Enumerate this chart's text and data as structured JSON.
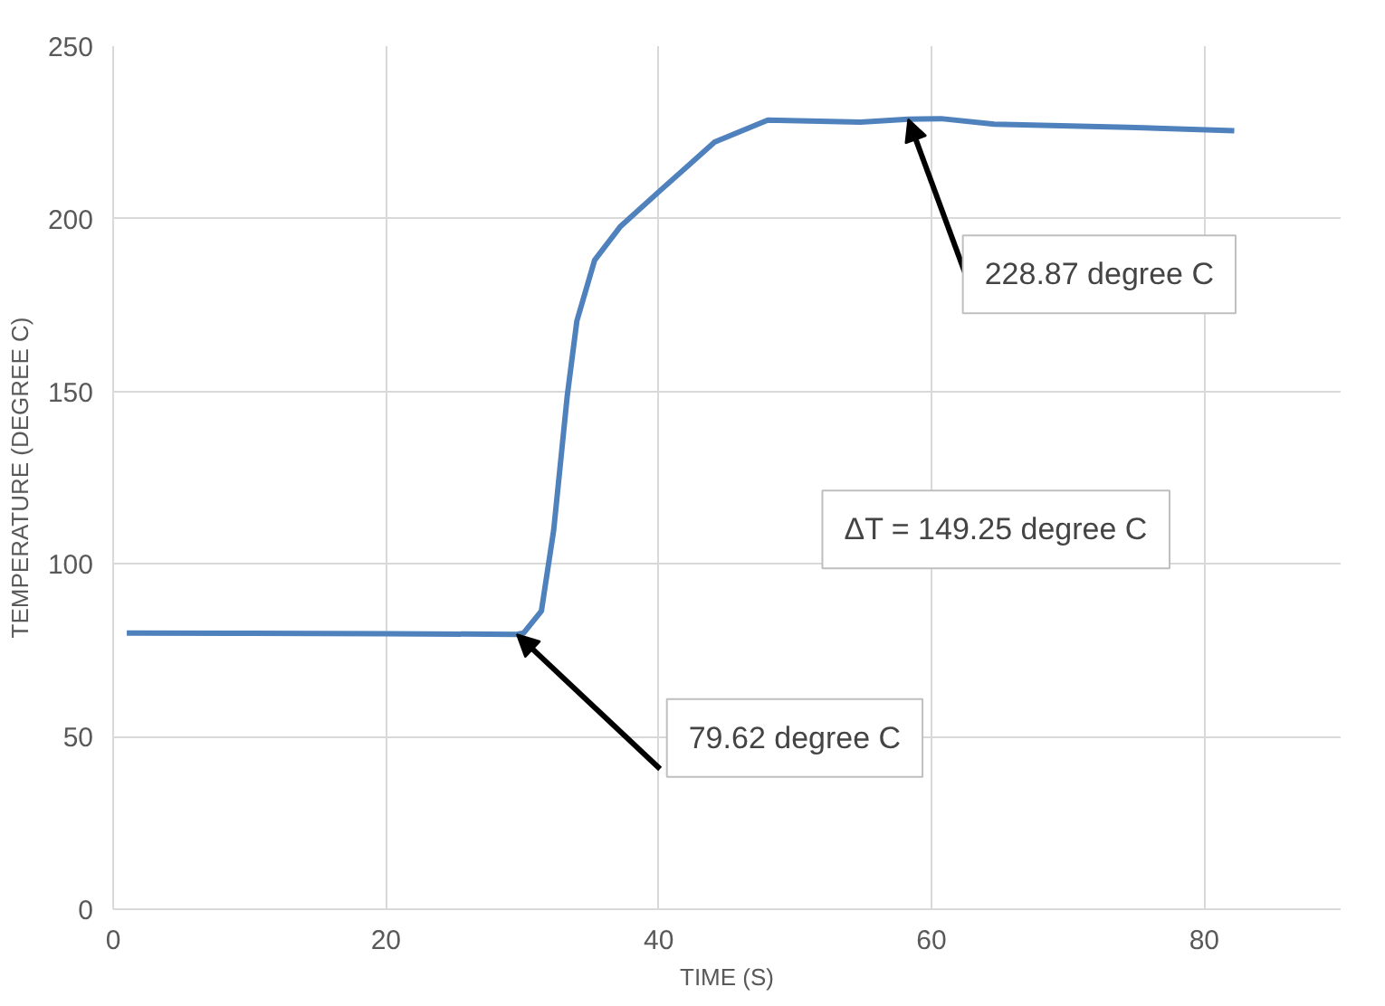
{
  "chart_data": {
    "type": "line",
    "xlabel": "TIME (S)",
    "ylabel": "TEMPERATURE (DEGREE C)",
    "x": [
      1,
      10,
      20,
      29.6,
      30.1,
      31.4,
      32.3,
      33.3,
      34.0,
      35.3,
      37.2,
      40.2,
      44.1,
      48.0,
      54.8,
      58.3,
      60.7,
      64.6,
      74.4,
      82.2
    ],
    "series": [
      {
        "color": "#4f81bd",
        "values": [
          80,
          79.9,
          79.8,
          79.62,
          80,
          86.4,
          109.8,
          148.9,
          170.4,
          188,
          197.8,
          208.5,
          222.2,
          228.6,
          228,
          228.87,
          229,
          227.4,
          226.5,
          225.5
        ]
      }
    ],
    "xlim": [
      0,
      90
    ],
    "ylim": [
      0,
      250
    ],
    "xticks": [
      0,
      20,
      40,
      60,
      80
    ],
    "yticks": [
      0,
      50,
      100,
      150,
      200,
      250
    ],
    "grid": true,
    "marker": "none",
    "line_style": "solid",
    "annotations": [
      {
        "text": "228.87 degree C",
        "x": 58.3,
        "y": 228.87
      },
      "ΔT = 149.25 degree C",
      {
        "text": "79.62 degree C",
        "x": 29.6,
        "y": 79.62
      }
    ]
  }
}
